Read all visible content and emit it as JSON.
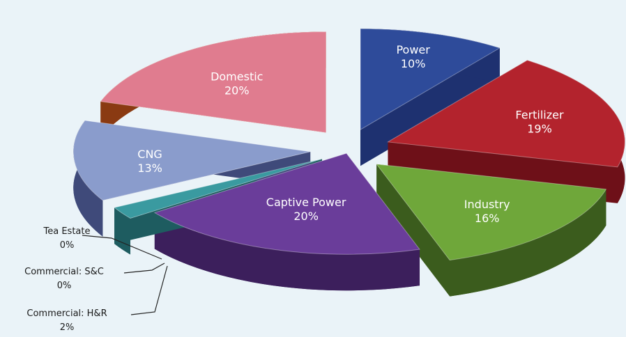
{
  "chart_data": {
    "type": "pie",
    "style": "3d-exploded",
    "slices": [
      {
        "name": "Power",
        "percent_label": "10%",
        "value": 10,
        "color": "#2e4b9a",
        "side_color": "#1e3170",
        "label_position": "inside"
      },
      {
        "name": "Fertilizer",
        "percent_label": "19%",
        "value": 19,
        "color": "#b3232d",
        "side_color": "#6e1018",
        "label_position": "inside"
      },
      {
        "name": "Industry",
        "percent_label": "16%",
        "value": 16,
        "color": "#6fa73a",
        "side_color": "#3b5c1d",
        "label_position": "inside"
      },
      {
        "name": "Captive Power",
        "percent_label": "20%",
        "value": 20,
        "color": "#6a3d9a",
        "side_color": "#3c1f5c",
        "label_position": "inside"
      },
      {
        "name": "Commercial: H&R",
        "percent_label": "2%",
        "value": 2,
        "color": "#3a9aa0",
        "side_color": "#1e5c60",
        "label_position": "outside"
      },
      {
        "name": "Commercial: S&C",
        "percent_label": "0%",
        "value": 0,
        "color": "#3a9aa0",
        "side_color": "#1e5c60",
        "label_position": "outside"
      },
      {
        "name": "Tea Estate",
        "percent_label": "0%",
        "value": 0,
        "color": "#3a9aa0",
        "side_color": "#1e5c60",
        "label_position": "outside"
      },
      {
        "name": "CNG",
        "percent_label": "13%",
        "value": 13,
        "color": "#8a9ccc",
        "side_color": "#3f4a7a",
        "label_position": "inside"
      },
      {
        "name": "Domestic",
        "percent_label": "20%",
        "value": 20,
        "color": "#e07c8f",
        "side_color": "#8a3a12",
        "label_position": "inside"
      }
    ]
  }
}
